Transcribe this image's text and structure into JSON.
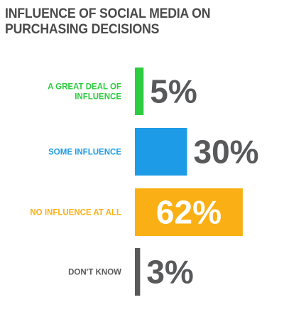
{
  "chart_data": {
    "type": "bar",
    "orientation": "horizontal",
    "title_lines": [
      "INFLUENCE OF SOCIAL MEDIA ON",
      "PURCHASING DECISIONS"
    ],
    "categories": [
      [
        "A GREAT DEAL OF",
        "INFLUENCE"
      ],
      [
        "SOME INFLUENCE"
      ],
      [
        "NO INFLUENCE AT ALL"
      ],
      [
        "DON'T KNOW"
      ]
    ],
    "values": [
      5,
      30,
      62,
      3
    ],
    "value_labels": [
      "5%",
      "30%",
      "62%",
      "3%"
    ],
    "colors": [
      "#2ecc40",
      "#1e9be6",
      "#fab014",
      "#58595b"
    ],
    "value_label_colors": [
      "#58595b",
      "#58595b",
      "#ffffff",
      "#58595b"
    ],
    "value_label_inside": [
      false,
      false,
      true,
      false
    ],
    "xlim": [
      0,
      100
    ],
    "grid": false,
    "legend": "none"
  }
}
